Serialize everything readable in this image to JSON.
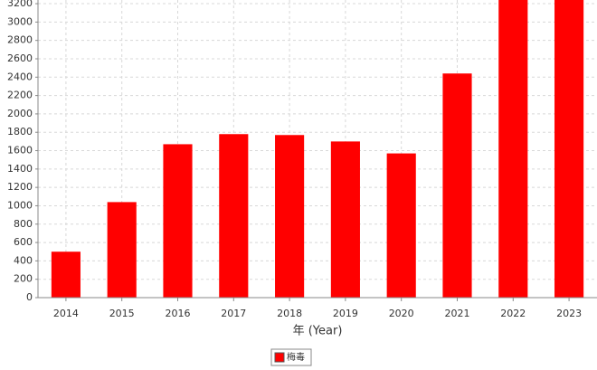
{
  "chart_data": {
    "type": "bar",
    "x_label": "年 (Year)",
    "categories": [
      "2014",
      "2015",
      "2016",
      "2017",
      "2018",
      "2019",
      "2020",
      "2021",
      "2022",
      "2023"
    ],
    "series": [
      {
        "name": "梅毒",
        "color": "#ff0000",
        "values": [
          500,
          1040,
          1670,
          1780,
          1770,
          1700,
          1570,
          2440,
          3240,
          3240
        ]
      }
    ],
    "ylim": [
      0,
      3240
    ],
    "yticks": [
      0,
      200,
      400,
      600,
      800,
      1000,
      1200,
      1400,
      1600,
      1800,
      2000,
      2200,
      2400,
      2600,
      2800,
      3000,
      3200
    ],
    "grid": true,
    "legend": "bottom"
  }
}
